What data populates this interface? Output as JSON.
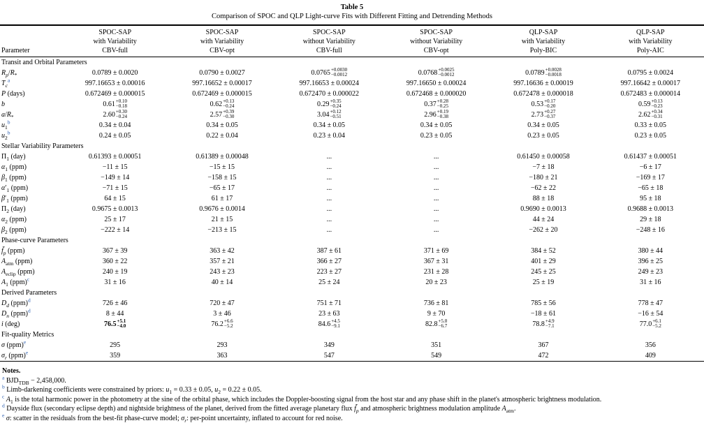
{
  "colors": {
    "footnote_link": "#2a5db0",
    "text": "#000000",
    "background": "#ffffff"
  },
  "table": {
    "label": "Table 5",
    "caption": "Comparison of SPOC and QLP Light-curve Fits with Different Fitting and Detrending Methods",
    "columns": [
      {
        "lines": [
          "Parameter"
        ]
      },
      {
        "lines": [
          "SPOC-SAP",
          "with Variability",
          "CBV-full"
        ]
      },
      {
        "lines": [
          "SPOC-SAP",
          "with Variability",
          "CBV-opt"
        ]
      },
      {
        "lines": [
          "SPOC-SAP",
          "without Variability",
          "CBV-full"
        ]
      },
      {
        "lines": [
          "SPOC-SAP",
          "without Variability",
          "CBV-opt"
        ]
      },
      {
        "lines": [
          "QLP-SAP",
          "with Variability",
          "Poly-BIC"
        ]
      },
      {
        "lines": [
          "QLP-SAP",
          "with Variability",
          "Poly-AIC"
        ]
      }
    ],
    "sections": [
      {
        "header": "Transit and Orbital Parameters",
        "rows": [
          {
            "param": "<i>R</i><sub><i>p</i></sub>/<i>R</i><sub>*</sub>",
            "values": [
              "0.0789 ± 0.0020",
              "0.0790 ± 0.0027",
              {
                "v": "0.0765",
                "p": "+0.0030",
                "m": "−0.0012"
              },
              {
                "v": "0.0768",
                "p": "+0.0025",
                "m": "−0.0012"
              },
              {
                "v": "0.0789",
                "p": "+0.0028",
                "m": "−0.0018"
              },
              "0.0795 ± 0.0024"
            ]
          },
          {
            "param": "<i>T</i><sub><i>c</i></sub><sup class='fn'>a</sup>",
            "values": [
              "997.16653 ± 0.00016",
              "997.16652 ± 0.00017",
              "997.16653 ± 0.00024",
              "997.16650 ± 0.00024",
              "997.16636 ± 0.00019",
              "997.16642 ± 0.00017"
            ]
          },
          {
            "param": "<i>P</i> (days)",
            "values": [
              "0.672469 ± 0.000015",
              "0.672469 ± 0.000015",
              "0.672470 ± 0.000022",
              "0.672468 ± 0.000020",
              "0.672478 ± 0.000018",
              "0.672483 ± 0.000014"
            ]
          },
          {
            "param": "<i>b</i>",
            "values": [
              {
                "v": "0.61",
                "p": "+0.10",
                "m": "−0.18"
              },
              {
                "v": "0.62",
                "p": "+0.13",
                "m": "−0.24"
              },
              {
                "v": "0.29",
                "p": "+0.35",
                "m": "−0.24"
              },
              {
                "v": "0.37",
                "p": "+0.28",
                "m": "−0.25"
              },
              {
                "v": "0.53",
                "p": "+0.17",
                "m": "−0.20"
              },
              {
                "v": "0.59",
                "p": "+0.13",
                "m": "−0.23"
              }
            ]
          },
          {
            "param": "<i>a</i>/<i>R</i><sub>*</sub>",
            "values": [
              {
                "v": "2.60",
                "p": "+0.30",
                "m": "−0.24"
              },
              {
                "v": "2.57",
                "p": "+0.39",
                "m": "−0.30"
              },
              {
                "v": "3.04",
                "p": "+0.12",
                "m": "−0.51"
              },
              {
                "v": "2.96",
                "p": "+0.19",
                "m": "−0.38"
              },
              {
                "v": "2.73",
                "p": "+0.27",
                "m": "−0.37"
              },
              {
                "v": "2.62",
                "p": "+0.34",
                "m": "−0.31"
              }
            ]
          },
          {
            "param": "<i>u</i><sub>1</sub><sup class='fn'>b</sup>",
            "values": [
              "0.34 ± 0.04",
              "0.34 ± 0.05",
              "0.34 ± 0.05",
              "0.34 ± 0.05",
              "0.34 ± 0.05",
              "0.33 ± 0.05"
            ]
          },
          {
            "param": "<i>u</i><sub>2</sub><sup class='fn'>b</sup>",
            "values": [
              "0.24 ± 0.05",
              "0.22 ± 0.04",
              "0.23 ± 0.04",
              "0.23 ± 0.05",
              "0.23 ± 0.05",
              "0.23 ± 0.05"
            ]
          }
        ]
      },
      {
        "header": "Stellar Variability Parameters",
        "rows": [
          {
            "param": "Π<sub>1</sub> (day)",
            "values": [
              "0.61393 ± 0.00051",
              "0.61389 ± 0.00048",
              "...",
              "...",
              "0.61450 ± 0.00058",
              "0.61437 ± 0.00051"
            ]
          },
          {
            "param": "<i>α</i><sub>1</sub> (ppm)",
            "values": [
              "−11 ± 15",
              "−15 ± 15",
              "...",
              "...",
              "−7 ± 18",
              "−6 ± 17"
            ]
          },
          {
            "param": "<i>β</i><sub>1</sub> (ppm)",
            "values": [
              "−149 ± 14",
              "−158 ± 15",
              "...",
              "...",
              "−180 ± 21",
              "−169 ± 17"
            ]
          },
          {
            "param": "<i>α</i>′<sub>1</sub> (ppm)",
            "values": [
              "−71 ± 15",
              "−65 ± 17",
              "...",
              "...",
              "−62 ± 22",
              "−65 ± 18"
            ]
          },
          {
            "param": "<i>β</i>′<sub>1</sub> (ppm)",
            "values": [
              "64 ± 15",
              "61 ± 17",
              "...",
              "...",
              "88 ± 18",
              "95 ± 18"
            ]
          },
          {
            "param": "Π<sub>2</sub> (day)",
            "values": [
              "0.9675 ± 0.0013",
              "0.9676 ± 0.0014",
              "...",
              "...",
              "0.9690 ± 0.0013",
              "0.9688 ± 0.0013"
            ]
          },
          {
            "param": "<i>α</i><sub>2</sub> (ppm)",
            "values": [
              "25 ± 17",
              "21 ± 15",
              "...",
              "...",
              "44 ± 24",
              "29 ± 18"
            ]
          },
          {
            "param": "<i>β</i><sub>2</sub> (ppm)",
            "values": [
              "−222 ± 14",
              "−213 ± 15",
              "...",
              "...",
              "−262 ± 20",
              "−248 ± 16"
            ]
          }
        ]
      },
      {
        "header": "Phase-curve Parameters",
        "rows": [
          {
            "param": "<i>f&#771;</i><sub><i>p</i></sub> (ppm)",
            "values": [
              "367 ± 39",
              "363 ± 42",
              "387 ± 61",
              "371 ± 69",
              "384 ± 52",
              "380 ± 44"
            ]
          },
          {
            "param": "<i>A</i><sub>atm</sub> (ppm)",
            "values": [
              "360 ± 22",
              "357 ± 21",
              "366 ± 27",
              "367 ± 31",
              "401 ± 29",
              "396 ± 25"
            ]
          },
          {
            "param": "<i>A</i><sub>eclip</sub> (ppm)",
            "values": [
              "240 ± 19",
              "243 ± 23",
              "223 ± 27",
              "231 ± 28",
              "245 ± 25",
              "249 ± 23"
            ]
          },
          {
            "param": "<i>A</i><sub>1</sub> (ppm)<sup class='fn'>c</sup>",
            "values": [
              "31 ± 16",
              "40 ± 14",
              "25 ± 24",
              "20 ± 23",
              "25 ± 19",
              "31 ± 16"
            ]
          }
        ]
      },
      {
        "header": "Derived Parameters",
        "rows": [
          {
            "param": "<i>D</i><sub><i>d</i></sub> (ppm)<sup class='fn'>d</sup>",
            "values": [
              "726 ± 46",
              "720 ± 47",
              "751 ± 71",
              "736 ± 81",
              "785 ± 56",
              "778 ± 47"
            ]
          },
          {
            "param": "<i>D</i><sub><i>n</i></sub> (ppm)<sup class='fn'>d</sup>",
            "values": [
              "8 ± 44",
              "3 ± 46",
              "23 ± 63",
              "9 ± 70",
              "−18 ± 61",
              "−16 ± 54"
            ]
          },
          {
            "param": "<i>i</i> (deg)",
            "values": [
              {
                "v": "76.5",
                "p": "+5.1",
                "m": "−4.0",
                "bold": true
              },
              {
                "v": "76.2",
                "p": "+6.6",
                "m": "−5.2"
              },
              {
                "v": "84.6",
                "p": "+4.5",
                "m": "−9.1"
              },
              {
                "v": "82.8",
                "p": "+5.0",
                "m": "−6.7"
              },
              {
                "v": "78.8",
                "p": "+4.9",
                "m": "−7.1"
              },
              {
                "v": "77.0",
                "p": "+6.1",
                "m": "−5.2"
              }
            ]
          }
        ]
      },
      {
        "header": "Fit-quality Metrics",
        "rows": [
          {
            "param": "<i>σ</i> (ppm)<sup class='fn'>e</sup>",
            "values": [
              "295",
              "293",
              "349",
              "351",
              "367",
              "356"
            ]
          },
          {
            "param": "<i>σ</i><sub><i>r</i></sub> (ppm)<sup class='fn'>e</sup>",
            "values": [
              "359",
              "363",
              "547",
              "549",
              "472",
              "409"
            ]
          }
        ]
      }
    ]
  },
  "notes": {
    "heading": "Notes.",
    "items": [
      {
        "marker": "a",
        "text": "BJD<sub>TDB</sub> − 2,458,000."
      },
      {
        "marker": "b",
        "text": "Limb-darkening coefficients were constrained by priors: <i>u</i><sub>1</sub> = 0.33 ± 0.05, <i>u</i><sub>2</sub> = 0.22 ± 0.05."
      },
      {
        "marker": "c",
        "text": "<i>A</i><sub>1</sub> is the total harmonic power in the photometry at the sine of the orbital phase, which includes the Doppler-boosting signal from the host star and any phase shift in the planet's atmospheric brightness modulation."
      },
      {
        "marker": "d",
        "text": "Dayside flux (secondary eclipse depth) and nightside brightness of the planet, derived from the fitted average planetary flux <i>f&#771;</i><sub><i>p</i></sub> and atmospheric brightness modulation amplitude <i>A</i><sub>atm</sub>."
      },
      {
        "marker": "e",
        "text": "<i>σ</i>: scatter in the residuals from the best-fit phase-curve model; <i>σ</i><sub><i>r</i></sub>: per-point uncertainty, inflated to account for red noise."
      }
    ]
  }
}
